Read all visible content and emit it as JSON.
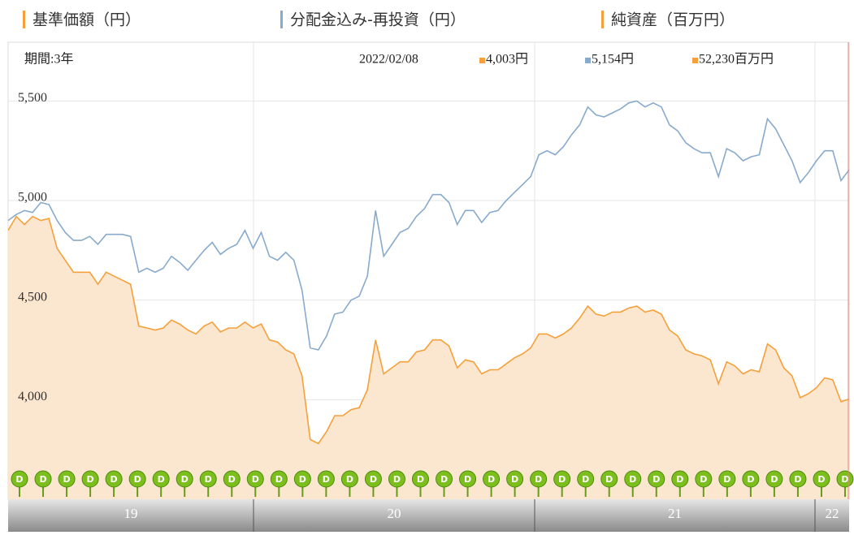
{
  "header": {
    "items": [
      {
        "label": "基準価額（円）",
        "color": "#f5a03a"
      },
      {
        "label": "分配金込み-再投資（円）",
        "color": "#88aacc"
      },
      {
        "label": "純資産（百万円）",
        "color": "#f5a03a"
      }
    ]
  },
  "chart_data": {
    "type": "line",
    "period": "期間:3年",
    "readout": {
      "date": "2022/02/08",
      "items": [
        {
          "label": "4,003円",
          "color": "#f5a03a"
        },
        {
          "label": "5,154円",
          "color": "#88aacc"
        },
        {
          "label": "52,230百万円",
          "color": "#f5a03a"
        }
      ]
    },
    "ylim": [
      3500,
      5795
    ],
    "yticks": [
      {
        "value": 4000,
        "label": "4,000"
      },
      {
        "value": 4500,
        "label": "4,500"
      },
      {
        "value": 5000,
        "label": "5,000"
      },
      {
        "value": 5500,
        "label": "5,500"
      }
    ],
    "grid": true,
    "period_labels": [
      "19",
      "20",
      "21",
      "22"
    ],
    "dividend_marker": "D",
    "series": [
      {
        "name": "基準価額（円）",
        "color": "#f5a03a",
        "fill": "#fbe6cf",
        "values": [
          4850,
          4920,
          4880,
          4920,
          4900,
          4910,
          4760,
          4700,
          4640,
          4640,
          4640,
          4580,
          4640,
          4620,
          4600,
          4580,
          4370,
          4360,
          4350,
          4360,
          4400,
          4380,
          4350,
          4330,
          4370,
          4390,
          4340,
          4360,
          4360,
          4390,
          4360,
          4380,
          4300,
          4290,
          4250,
          4230,
          4120,
          3800,
          3780,
          3840,
          3920,
          3920,
          3950,
          3960,
          4050,
          4300,
          4130,
          4160,
          4190,
          4190,
          4240,
          4250,
          4300,
          4300,
          4270,
          4160,
          4200,
          4190,
          4130,
          4150,
          4150,
          4180,
          4210,
          4230,
          4260,
          4330,
          4330,
          4310,
          4330,
          4360,
          4410,
          4470,
          4430,
          4420,
          4440,
          4440,
          4460,
          4470,
          4440,
          4450,
          4430,
          4350,
          4320,
          4250,
          4230,
          4220,
          4200,
          4080,
          4190,
          4170,
          4130,
          4150,
          4140,
          4280,
          4250,
          4160,
          4120,
          4010,
          4030,
          4060,
          4110,
          4100,
          3990,
          4003
        ]
      },
      {
        "name": "分配金込み-再投資（円）",
        "color": "#88aacc",
        "values": [
          4900,
          4930,
          4950,
          4940,
          4990,
          4980,
          4900,
          4840,
          4800,
          4800,
          4820,
          4780,
          4830,
          4830,
          4830,
          4820,
          4640,
          4660,
          4640,
          4660,
          4720,
          4690,
          4650,
          4700,
          4750,
          4790,
          4730,
          4760,
          4780,
          4850,
          4760,
          4840,
          4720,
          4700,
          4740,
          4700,
          4550,
          4260,
          4250,
          4320,
          4430,
          4440,
          4500,
          4520,
          4620,
          4950,
          4720,
          4780,
          4840,
          4860,
          4920,
          4960,
          5030,
          5030,
          4990,
          4880,
          4950,
          4950,
          4890,
          4940,
          4950,
          5000,
          5040,
          5080,
          5120,
          5230,
          5250,
          5230,
          5270,
          5330,
          5380,
          5470,
          5430,
          5420,
          5440,
          5460,
          5490,
          5500,
          5470,
          5490,
          5470,
          5380,
          5350,
          5290,
          5260,
          5240,
          5240,
          5120,
          5260,
          5240,
          5200,
          5220,
          5230,
          5410,
          5360,
          5280,
          5200,
          5090,
          5140,
          5200,
          5250,
          5250,
          5100,
          5154
        ]
      }
    ]
  }
}
